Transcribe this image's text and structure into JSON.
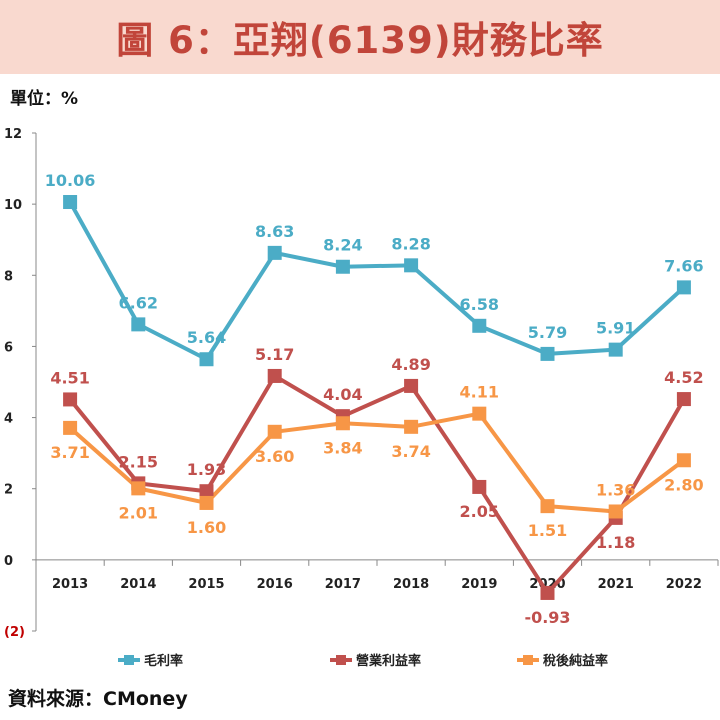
{
  "header": {
    "title": "圖 6：亞翔(6139)財務比率"
  },
  "unit_label": "單位：%",
  "source_label": "資料來源：CMoney",
  "chart_data": {
    "type": "line",
    "title": "圖 6：亞翔(6139)財務比率",
    "xlabel": "",
    "ylabel": "單位：%",
    "ylim": [
      -2,
      12
    ],
    "yticks": [
      {
        "value": 12,
        "label": "12"
      },
      {
        "value": 10,
        "label": "10"
      },
      {
        "value": 8,
        "label": "8"
      },
      {
        "value": 6,
        "label": "6"
      },
      {
        "value": 4,
        "label": "4"
      },
      {
        "value": 2,
        "label": "2"
      },
      {
        "value": 0,
        "label": "0"
      },
      {
        "value": -2,
        "label": "(2)"
      }
    ],
    "categories": [
      "2013",
      "2014",
      "2015",
      "2016",
      "2017",
      "2018",
      "2019",
      "2020",
      "2021",
      "2022"
    ],
    "legend_position": "bottom",
    "series": [
      {
        "name": "毛利率",
        "color": "#4bacc6",
        "values": [
          10.06,
          6.62,
          5.64,
          8.63,
          8.24,
          8.28,
          6.58,
          5.79,
          5.91,
          7.66
        ],
        "labels": [
          "10.06",
          "6.62",
          "5.64",
          "8.63",
          "8.24",
          "8.28",
          "6.58",
          "5.79",
          "5.91",
          "7.66"
        ]
      },
      {
        "name": "營業利益率",
        "color": "#c0504d",
        "values": [
          4.51,
          2.15,
          1.93,
          5.17,
          4.04,
          4.89,
          2.05,
          -0.93,
          1.18,
          4.52
        ],
        "labels": [
          "4.51",
          "2.15",
          "1.93",
          "5.17",
          "4.04",
          "4.89",
          "2.05",
          "-0.93",
          "1.18",
          "4.52"
        ]
      },
      {
        "name": "稅後純益率",
        "color": "#f79646",
        "values": [
          3.71,
          2.01,
          1.6,
          3.6,
          3.84,
          3.74,
          4.11,
          1.51,
          1.36,
          2.8
        ],
        "labels": [
          "3.71",
          "2.01",
          "1.60",
          "3.60",
          "3.84",
          "3.74",
          "4.11",
          "1.51",
          "1.36",
          "2.80"
        ]
      }
    ]
  }
}
